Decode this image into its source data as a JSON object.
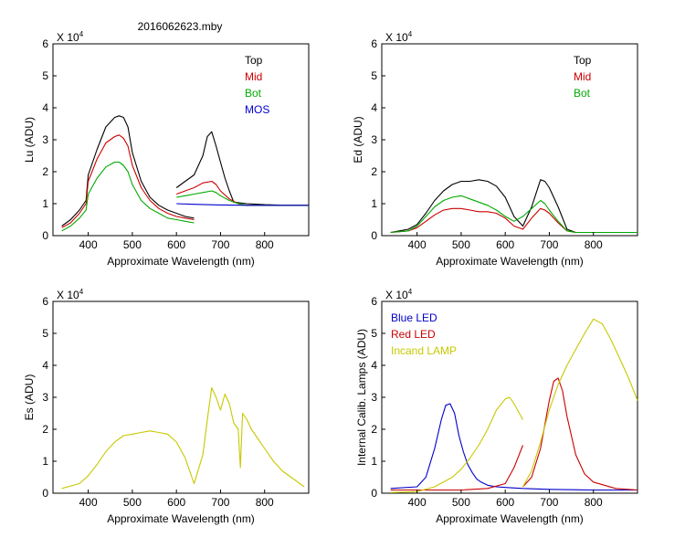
{
  "figure_title": "2016062623.mby",
  "chart_data": [
    {
      "type": "line",
      "id": "lu",
      "title": "2016062623.mby",
      "xlabel": "Approximate Wavelength (nm)",
      "ylabel": "Lu (ADU)",
      "exponent_label": "X 10",
      "exponent_power": "4",
      "xlim": [
        320,
        900
      ],
      "ylim": [
        0,
        6
      ],
      "xticks": [
        400,
        500,
        600,
        700,
        800
      ],
      "yticks": [
        0,
        1,
        2,
        3,
        4,
        5,
        6
      ],
      "legend_position": "top-right",
      "series": [
        {
          "name": "Top",
          "color": "#000000",
          "segments": [
            {
              "x": [
                340,
                360,
                380,
                395,
                400,
                420,
                440,
                460,
                470,
                480,
                490,
                500,
                520,
                540,
                560,
                580,
                600,
                620,
                640
              ],
              "y": [
                0.3,
                0.5,
                0.8,
                1.1,
                1.9,
                2.7,
                3.4,
                3.7,
                3.75,
                3.7,
                3.4,
                2.6,
                1.7,
                1.2,
                0.95,
                0.8,
                0.7,
                0.6,
                0.55
              ]
            },
            {
              "x": [
                600,
                620,
                640,
                660,
                670,
                680,
                690,
                700,
                710,
                720,
                730,
                760,
                800,
                850,
                900
              ],
              "y": [
                1.5,
                1.7,
                1.9,
                2.5,
                3.1,
                3.25,
                2.8,
                2.3,
                1.8,
                1.4,
                1.05,
                1.0,
                0.97,
                0.95,
                0.95
              ]
            }
          ]
        },
        {
          "name": "Mid",
          "color": "#cc0000",
          "segments": [
            {
              "x": [
                340,
                360,
                380,
                395,
                400,
                420,
                440,
                460,
                470,
                480,
                490,
                500,
                520,
                540,
                560,
                580,
                600,
                620,
                640
              ],
              "y": [
                0.25,
                0.4,
                0.7,
                1.0,
                1.7,
                2.4,
                2.9,
                3.1,
                3.15,
                3.05,
                2.8,
                2.2,
                1.5,
                1.1,
                0.85,
                0.7,
                0.6,
                0.55,
                0.5
              ]
            },
            {
              "x": [
                600,
                620,
                640,
                660,
                680,
                690,
                700,
                720,
                740,
                760,
                800,
                850,
                900
              ],
              "y": [
                1.3,
                1.4,
                1.5,
                1.65,
                1.7,
                1.6,
                1.4,
                1.15,
                1.0,
                0.95,
                0.95,
                0.95,
                0.95
              ]
            }
          ]
        },
        {
          "name": "Bot",
          "color": "#00aa00",
          "segments": [
            {
              "x": [
                340,
                360,
                380,
                395,
                400,
                420,
                440,
                460,
                470,
                480,
                490,
                500,
                520,
                540,
                560,
                580,
                600,
                620,
                640
              ],
              "y": [
                0.15,
                0.3,
                0.55,
                0.8,
                1.3,
                1.8,
                2.15,
                2.3,
                2.3,
                2.2,
                2.0,
                1.6,
                1.1,
                0.85,
                0.7,
                0.55,
                0.5,
                0.45,
                0.4
              ]
            },
            {
              "x": [
                600,
                620,
                640,
                660,
                680,
                690,
                700,
                720,
                740,
                760,
                800,
                850,
                900
              ],
              "y": [
                1.2,
                1.25,
                1.3,
                1.35,
                1.4,
                1.35,
                1.25,
                1.1,
                1.0,
                0.95,
                0.95,
                0.95,
                0.95
              ]
            }
          ]
        },
        {
          "name": "MOS",
          "color": "#0000cc",
          "segments": [
            {
              "x": [
                600,
                640,
                700,
                760,
                800,
                850,
                900
              ],
              "y": [
                1.0,
                0.98,
                0.96,
                0.95,
                0.95,
                0.95,
                0.95
              ]
            }
          ]
        }
      ]
    },
    {
      "type": "line",
      "id": "ed",
      "title": "",
      "xlabel": "Approximate Wavelength (nm)",
      "ylabel": "Ed (ADU)",
      "exponent_label": "X 10",
      "exponent_power": "4",
      "xlim": [
        320,
        900
      ],
      "ylim": [
        0,
        6
      ],
      "xticks": [
        400,
        500,
        600,
        700,
        800
      ],
      "yticks": [
        0,
        1,
        2,
        3,
        4,
        5,
        6
      ],
      "legend_position": "top-right",
      "series": [
        {
          "name": "Top",
          "color": "#000000",
          "segments": [
            {
              "x": [
                340,
                380,
                400,
                420,
                440,
                460,
                480,
                500,
                520,
                540,
                560,
                580,
                600,
                620,
                640,
                660,
                680,
                690,
                700,
                720,
                740,
                760,
                800,
                850,
                900
              ],
              "y": [
                0.1,
                0.2,
                0.35,
                0.7,
                1.1,
                1.4,
                1.6,
                1.7,
                1.7,
                1.75,
                1.7,
                1.55,
                1.2,
                0.6,
                0.3,
                0.9,
                1.75,
                1.7,
                1.5,
                0.9,
                0.2,
                0.1,
                0.1,
                0.1,
                0.1
              ]
            }
          ]
        },
        {
          "name": "Mid",
          "color": "#cc0000",
          "segments": [
            {
              "x": [
                340,
                380,
                400,
                420,
                440,
                460,
                480,
                500,
                520,
                540,
                560,
                580,
                600,
                620,
                640,
                660,
                680,
                690,
                700,
                720,
                740,
                760,
                800,
                850,
                900
              ],
              "y": [
                0.1,
                0.15,
                0.25,
                0.45,
                0.65,
                0.8,
                0.85,
                0.85,
                0.8,
                0.75,
                0.75,
                0.7,
                0.55,
                0.3,
                0.2,
                0.55,
                0.85,
                0.8,
                0.7,
                0.4,
                0.15,
                0.1,
                0.1,
                0.1,
                0.1
              ]
            }
          ]
        },
        {
          "name": "Bot",
          "color": "#00aa00",
          "segments": [
            {
              "x": [
                340,
                380,
                400,
                420,
                440,
                460,
                480,
                500,
                520,
                540,
                560,
                580,
                600,
                620,
                640,
                660,
                680,
                690,
                700,
                720,
                740,
                760,
                800,
                850,
                900
              ],
              "y": [
                0.1,
                0.15,
                0.3,
                0.6,
                0.9,
                1.1,
                1.2,
                1.25,
                1.15,
                1.05,
                0.95,
                0.8,
                0.6,
                0.45,
                0.6,
                0.85,
                1.1,
                1.0,
                0.8,
                0.45,
                0.15,
                0.1,
                0.1,
                0.1,
                0.1
              ]
            }
          ]
        }
      ]
    },
    {
      "type": "line",
      "id": "es",
      "title": "",
      "xlabel": "Approximate Wavelength (nm)",
      "ylabel": "Es (ADU)",
      "exponent_label": "X 10",
      "exponent_power": "4",
      "xlim": [
        320,
        900
      ],
      "ylim": [
        0,
        6
      ],
      "xticks": [
        400,
        500,
        600,
        700,
        800
      ],
      "yticks": [
        0,
        1,
        2,
        3,
        4,
        5,
        6
      ],
      "legend_position": "none",
      "series": [
        {
          "name": "Es",
          "color": "#c8c800",
          "segments": [
            {
              "x": [
                340,
                380,
                400,
                420,
                440,
                460,
                480,
                500,
                520,
                540,
                560,
                580,
                600,
                620,
                640,
                660,
                670,
                680,
                690,
                700,
                710,
                720,
                730,
                740,
                745,
                750,
                760,
                770,
                780,
                800,
                820,
                840,
                860,
                880,
                890
              ],
              "y": [
                0.15,
                0.3,
                0.55,
                0.9,
                1.3,
                1.6,
                1.8,
                1.85,
                1.9,
                1.95,
                1.9,
                1.85,
                1.6,
                1.1,
                0.3,
                1.2,
                2.3,
                3.3,
                3.0,
                2.6,
                3.1,
                2.8,
                2.2,
                2.0,
                0.8,
                2.5,
                2.3,
                2.0,
                1.8,
                1.4,
                1.0,
                0.7,
                0.5,
                0.3,
                0.2
              ]
            }
          ]
        }
      ]
    },
    {
      "type": "line",
      "id": "calib",
      "title": "",
      "xlabel": "Approximate Wavelength (nm)",
      "ylabel": "Internal Calib. Lamps (ADU)",
      "exponent_label": "X 10",
      "exponent_power": "4",
      "xlim": [
        320,
        900
      ],
      "ylim": [
        0,
        6
      ],
      "xticks": [
        400,
        500,
        600,
        700,
        800
      ],
      "yticks": [
        0,
        1,
        2,
        3,
        4,
        5,
        6
      ],
      "legend_position": "top-left",
      "series": [
        {
          "name": "Blue LED",
          "color": "#0000cc",
          "segments": [
            {
              "x": [
                340,
                400,
                420,
                440,
                455,
                465,
                475,
                485,
                495,
                505,
                515,
                525,
                535,
                545,
                560,
                580,
                600,
                640,
                700,
                800,
                900
              ],
              "y": [
                0.15,
                0.2,
                0.5,
                1.4,
                2.3,
                2.75,
                2.8,
                2.5,
                1.8,
                1.3,
                0.9,
                0.65,
                0.45,
                0.35,
                0.25,
                0.2,
                0.18,
                0.15,
                0.12,
                0.1,
                0.1
              ]
            }
          ]
        },
        {
          "name": "Red LED",
          "color": "#cc0000",
          "segments": [
            {
              "x": [
                340,
                500,
                560,
                600,
                620,
                640
              ],
              "y": [
                0.1,
                0.1,
                0.15,
                0.3,
                0.8,
                1.5
              ]
            },
            {
              "x": [
                640,
                660,
                680,
                700,
                710,
                720,
                730,
                740,
                760,
                780,
                800,
                850,
                900
              ],
              "y": [
                0.2,
                0.5,
                1.4,
                2.9,
                3.5,
                3.6,
                3.2,
                2.4,
                1.2,
                0.6,
                0.35,
                0.15,
                0.1
              ]
            }
          ]
        },
        {
          "name": "Incand LAMP",
          "color": "#c8c800",
          "segments": [
            {
              "x": [
                340,
                400,
                440,
                480,
                500,
                520,
                540,
                560,
                580,
                600,
                610,
                620,
                640
              ],
              "y": [
                0.02,
                0.05,
                0.2,
                0.5,
                0.75,
                1.1,
                1.5,
                2.0,
                2.6,
                2.95,
                3.0,
                2.8,
                2.3
              ]
            },
            {
              "x": [
                640,
                660,
                680,
                700,
                720,
                740,
                760,
                780,
                800,
                820,
                840,
                860,
                880,
                900
              ],
              "y": [
                0.2,
                0.7,
                1.6,
                2.6,
                3.4,
                4.0,
                4.5,
                5.0,
                5.45,
                5.3,
                4.8,
                4.2,
                3.6,
                2.9
              ]
            }
          ]
        }
      ]
    }
  ]
}
